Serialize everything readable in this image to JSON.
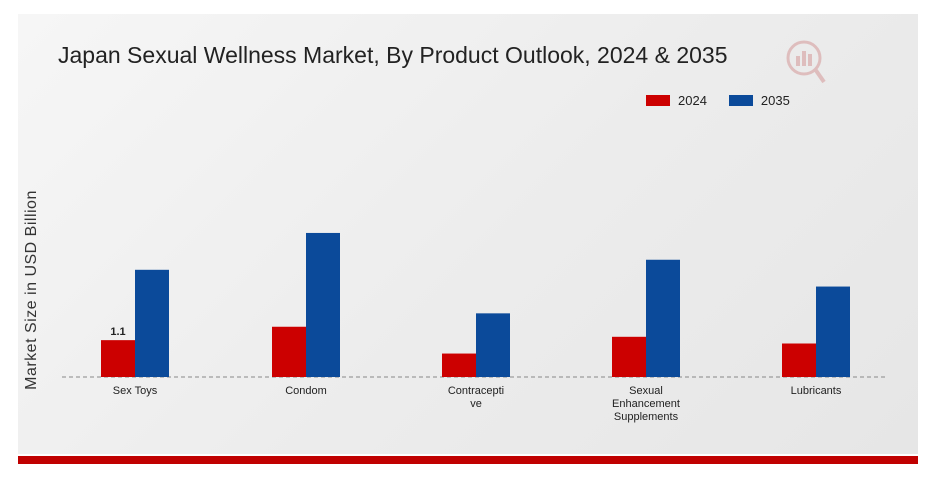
{
  "chart_data": {
    "type": "bar",
    "title": "Japan Sexual Wellness Market, By Product Outlook, 2024 & 2035",
    "ylabel": "Market Size in USD Billion",
    "xlabel": "",
    "categories": [
      [
        "Sex Toys"
      ],
      [
        "Condom"
      ],
      [
        "Contracepti",
        "ve"
      ],
      [
        "Sexual",
        "Enhancement",
        "Supplements"
      ],
      [
        "Lubricants"
      ]
    ],
    "series": [
      {
        "name": "2024",
        "color": "#cc0000",
        "values": [
          1.1,
          1.5,
          0.7,
          1.2,
          1.0
        ]
      },
      {
        "name": "2035",
        "color": "#0b4a9a",
        "values": [
          3.2,
          4.3,
          1.9,
          3.5,
          2.7
        ]
      }
    ],
    "data_labels": [
      {
        "series": 0,
        "index": 0,
        "text": "1.1"
      }
    ],
    "ylim": [
      0,
      5
    ],
    "grid": false,
    "legend_position": "top-right"
  }
}
